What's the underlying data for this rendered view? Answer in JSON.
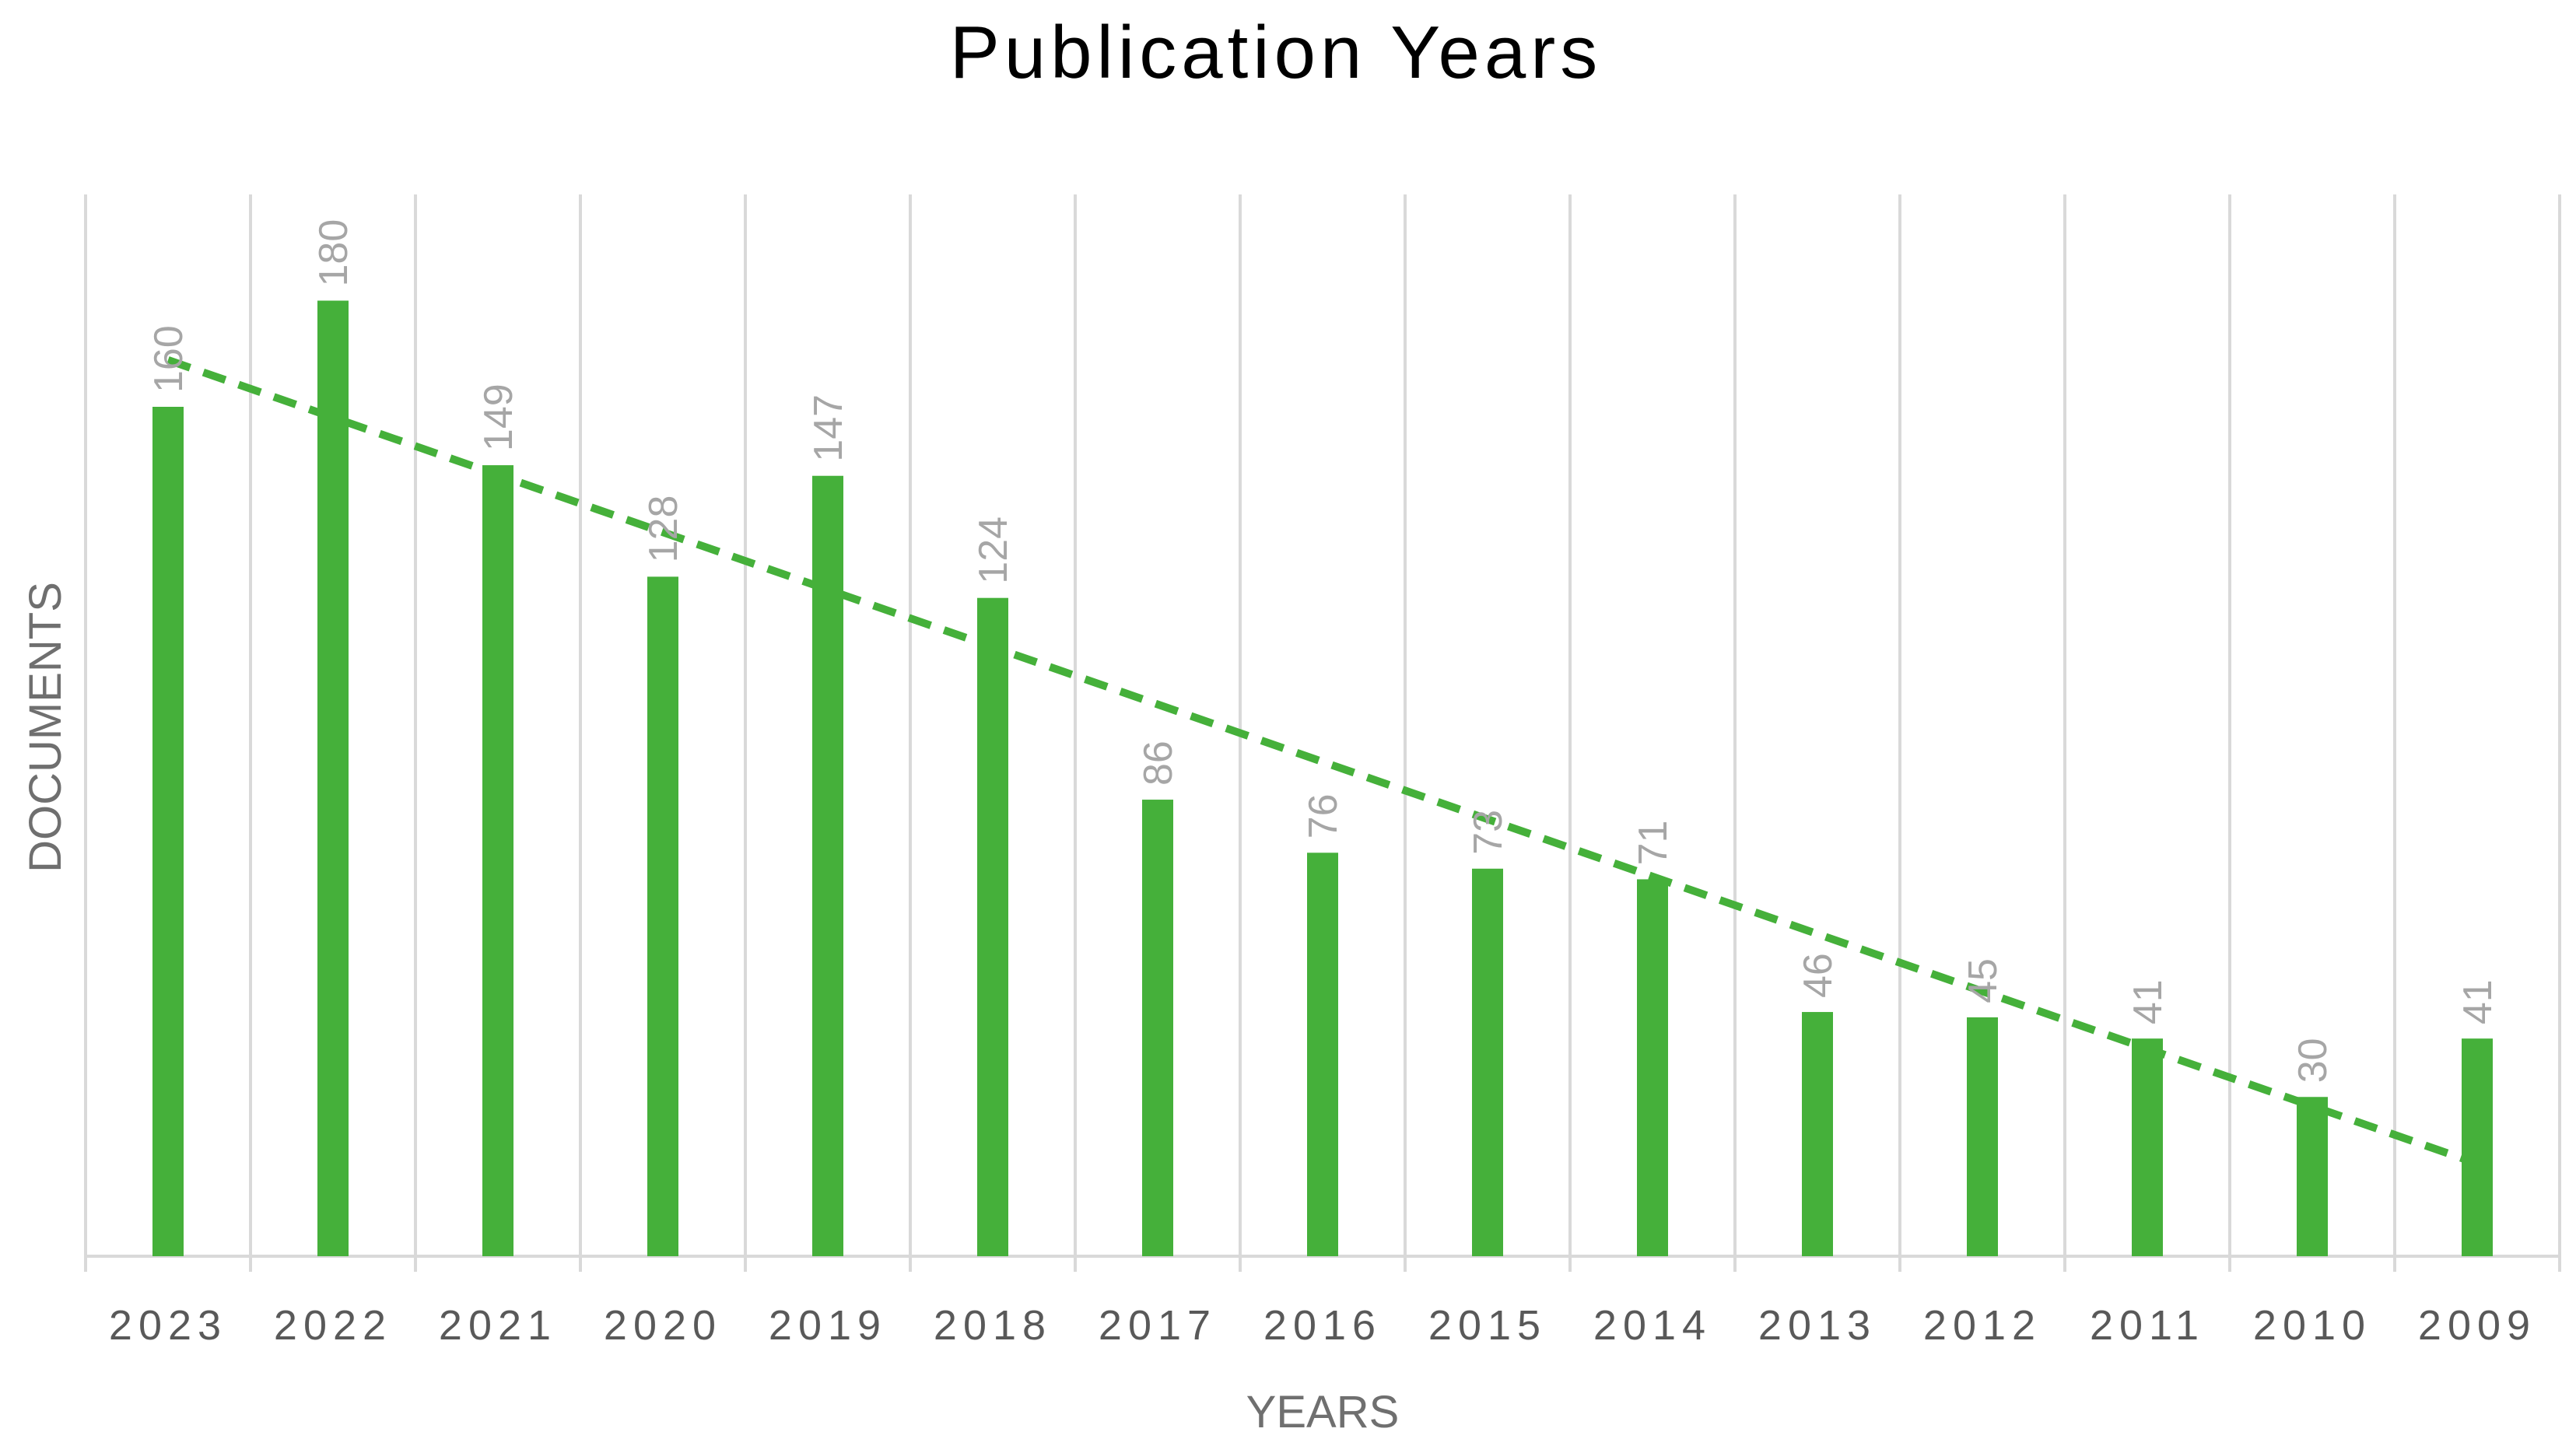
{
  "chart_data": {
    "type": "bar",
    "title": "Publication Years",
    "xlabel": "YEARS",
    "ylabel": "DOCUMENTS",
    "categories": [
      "2023",
      "2022",
      "2021",
      "2020",
      "2019",
      "2018",
      "2017",
      "2016",
      "2015",
      "2014",
      "2013",
      "2012",
      "2011",
      "2010",
      "2009"
    ],
    "series": [
      {
        "values": [
          160,
          180,
          149,
          128,
          147,
          124,
          86,
          76,
          73,
          71,
          46,
          45,
          41,
          30,
          41
        ]
      }
    ],
    "trendline": {
      "type": "linear",
      "style": "dashed"
    },
    "data_labels": {
      "shown": true,
      "rotation": "vertical"
    },
    "ylim": [
      0,
      200
    ],
    "grid": {
      "vertical": true,
      "horizontal": false
    },
    "legend": "none",
    "colors": {
      "bar": "#45b03a",
      "trendline": "#45b03a",
      "gridline": "#d9d9d9",
      "data_label": "#a6a6a6",
      "tick_label": "#595959"
    }
  }
}
